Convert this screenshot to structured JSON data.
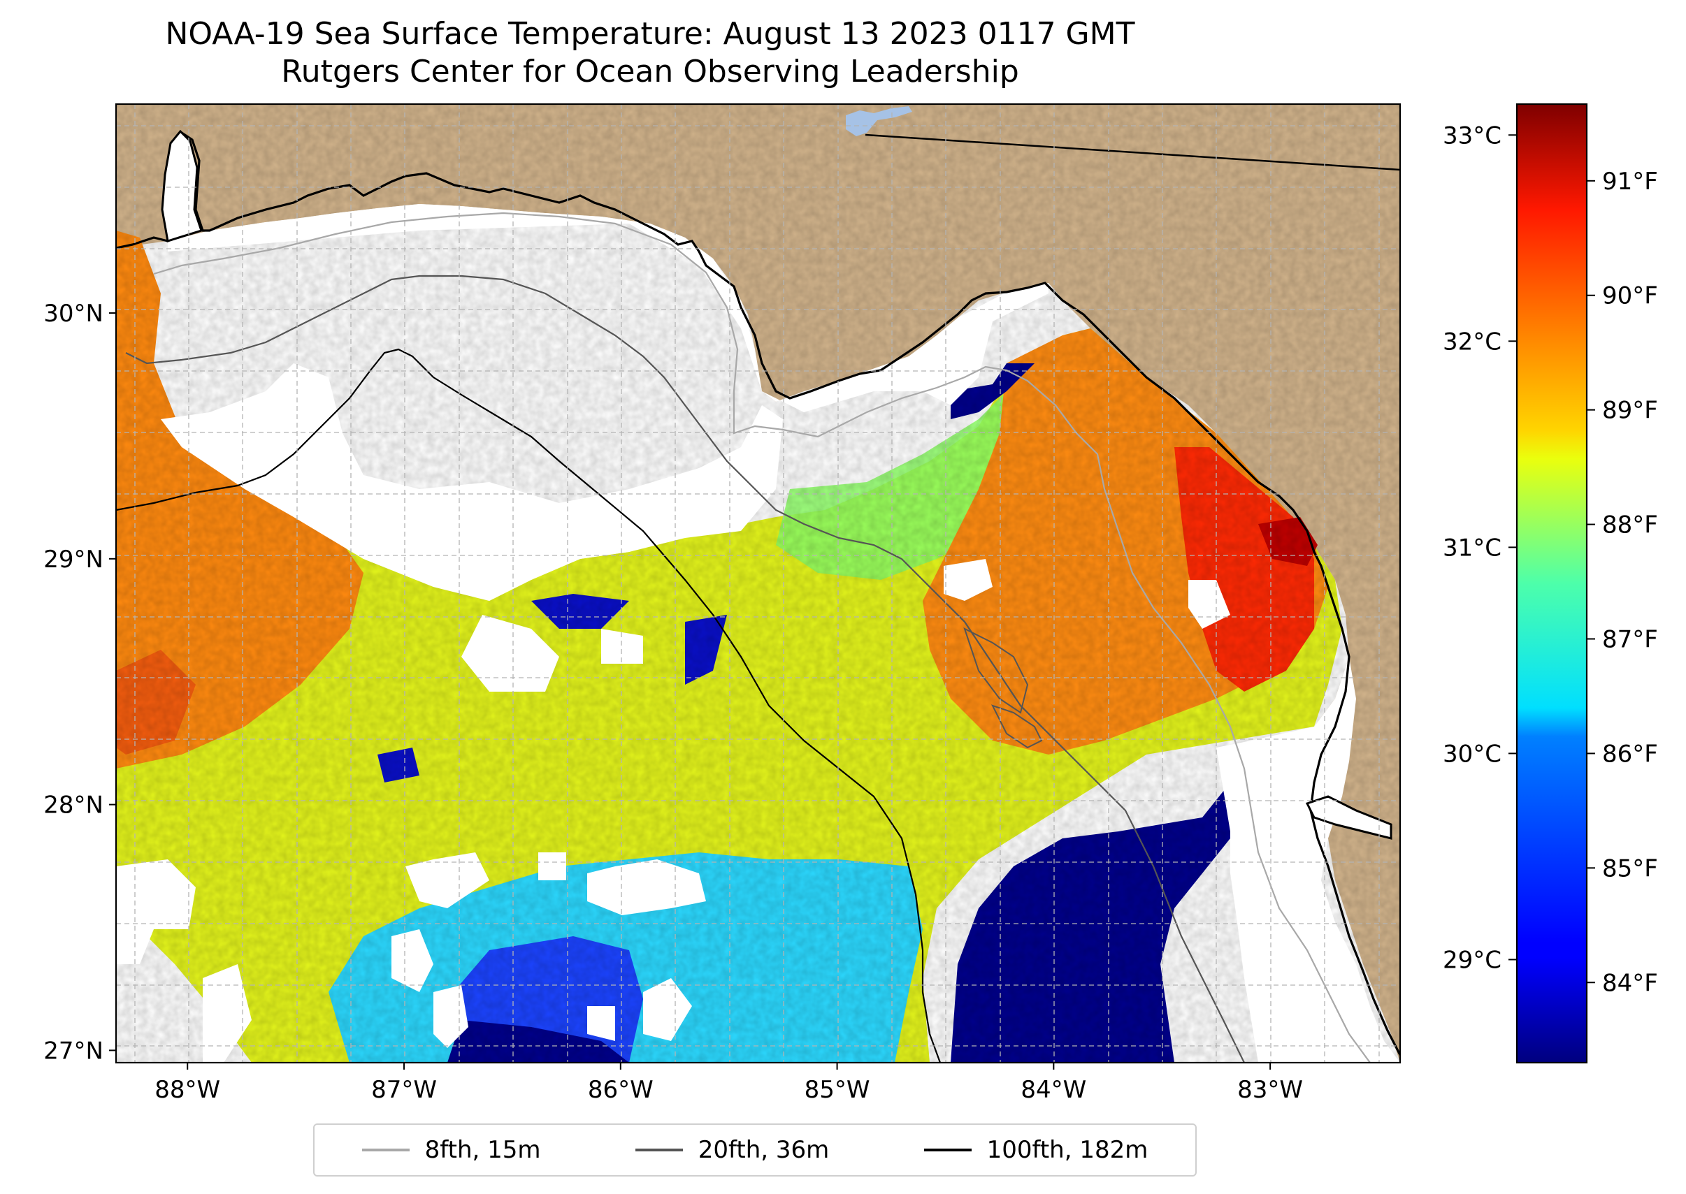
{
  "title": {
    "line1": "NOAA-19 Sea Surface Temperature: August 13 2023 0117 GMT",
    "line2": "Rutgers Center for Ocean Observing Leadership"
  },
  "map": {
    "lon_range": [
      -88.33,
      -82.4
    ],
    "lat_range": [
      26.95,
      30.85
    ],
    "land_color": "#d2b48c",
    "no_data_color": "#ffffff",
    "lon_ticks": [
      {
        "value": -88,
        "label": "88°W"
      },
      {
        "value": -87,
        "label": "87°W"
      },
      {
        "value": -86,
        "label": "86°W"
      },
      {
        "value": -85,
        "label": "85°W"
      },
      {
        "value": -84,
        "label": "84°W"
      },
      {
        "value": -83,
        "label": "83°W"
      }
    ],
    "lat_ticks": [
      {
        "value": 27,
        "label": "27°N"
      },
      {
        "value": 28,
        "label": "28°N"
      },
      {
        "value": 29,
        "label": "29°N"
      },
      {
        "value": 30,
        "label": "30°N"
      }
    ]
  },
  "colorbar": {
    "colormap": "jet",
    "celsius_range": [
      28.5,
      33.15
    ],
    "celsius_ticks": [
      {
        "value": 29,
        "label": "29°C"
      },
      {
        "value": 30,
        "label": "30°C"
      },
      {
        "value": 31,
        "label": "31°C"
      },
      {
        "value": 32,
        "label": "32°C"
      },
      {
        "value": 33,
        "label": "33°C"
      }
    ],
    "fahrenheit_ticks": [
      {
        "value": 84,
        "label": "84°F"
      },
      {
        "value": 85,
        "label": "85°F"
      },
      {
        "value": 86,
        "label": "86°F"
      },
      {
        "value": 87,
        "label": "87°F"
      },
      {
        "value": 88,
        "label": "88°F"
      },
      {
        "value": 89,
        "label": "89°F"
      },
      {
        "value": 90,
        "label": "90°F"
      },
      {
        "value": 91,
        "label": "91°F"
      }
    ]
  },
  "legend": {
    "items": [
      {
        "label": "8fth, 15m",
        "color": "#a8a8a8"
      },
      {
        "label": "20fth, 36m",
        "color": "#555555"
      },
      {
        "label": "100fth, 182m",
        "color": "#000000"
      }
    ]
  }
}
